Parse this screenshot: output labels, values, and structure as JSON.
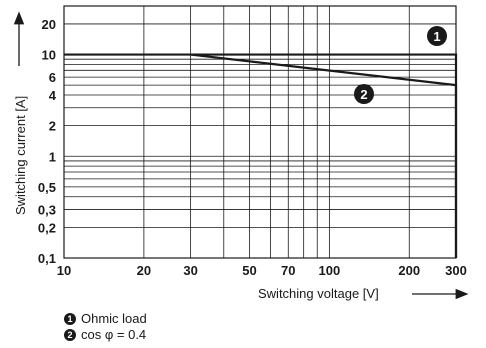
{
  "chart_data": {
    "type": "line",
    "x_scale": "log",
    "y_scale": "log",
    "xlim": [
      10,
      300
    ],
    "ylim": [
      0.1,
      30
    ],
    "xlabel": "Switching voltage [V]",
    "ylabel": "Switching current [A]",
    "x_ticks": [
      10,
      20,
      30,
      50,
      70,
      100,
      200,
      300
    ],
    "x_tick_labels": [
      "10",
      "20",
      "30",
      "50",
      "70",
      "100",
      "200",
      "300"
    ],
    "y_ticks": [
      0.1,
      0.2,
      0.3,
      0.5,
      1,
      2,
      4,
      6,
      10,
      20
    ],
    "y_tick_labels": [
      "0,1",
      "0,2",
      "0,3",
      "0,5",
      "1",
      "2",
      "4",
      "6",
      "10",
      "20"
    ],
    "x_grid": [
      10,
      20,
      30,
      40,
      50,
      60,
      70,
      80,
      90,
      100,
      200,
      300
    ],
    "y_grid": [
      0.1,
      0.2,
      0.3,
      0.4,
      0.5,
      0.6,
      0.7,
      0.8,
      0.9,
      1,
      2,
      3,
      4,
      5,
      6,
      7,
      8,
      9,
      10,
      20,
      30
    ],
    "grid": true,
    "series": [
      {
        "marker": "1",
        "name": "Ohmic load",
        "x": [
          10,
          300,
          300
        ],
        "y": [
          10,
          10,
          0.1
        ]
      },
      {
        "marker": "2",
        "name": "cos φ = 0.4",
        "x": [
          30,
          300,
          300
        ],
        "y": [
          10,
          5,
          0.1
        ]
      }
    ],
    "legend": [
      {
        "num": "1",
        "label": "Ohmic load"
      },
      {
        "num": "2",
        "label": "cos φ = 0.4"
      }
    ]
  }
}
